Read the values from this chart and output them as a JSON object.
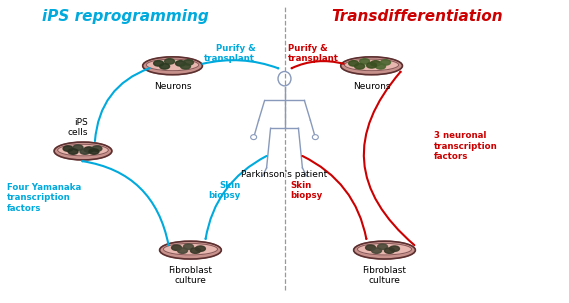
{
  "title_left": "iPS reprogramming",
  "title_right": "Transdifferentiation",
  "title_left_color": "#00AADD",
  "title_right_color": "#CC0000",
  "bg_color": "#FFFFFF",
  "cyan_color": "#00AADD",
  "red_color": "#CC0000",
  "labels": {
    "neurons_left": "Neurons",
    "neurons_right": "Neurons",
    "ips_cells": "iPS\ncells",
    "fibroblast_left": "Fibroblast\nculture",
    "fibroblast_right": "Fibroblast\nculture",
    "patient": "Parkinson's patient",
    "purify_left": "Purify &\ntransplant",
    "purify_right": "Purify &\ntransplant",
    "skin_left": "Skin\nbiopsy",
    "skin_right": "Skin\nbiopsy",
    "yamanaka": "Four Yamanaka\ntranscription\nfactors",
    "neuronal": "3 neuronal\ntranscription\nfactors"
  },
  "dish_color": "#C8908A",
  "dish_edge": "#8B5A5A",
  "dish_inner": "#E8B8B0",
  "dish_rim": "#5A3030",
  "cell_dark": "#2a3520",
  "cell_green": "#3a5530",
  "figure_color": "#8899BB"
}
